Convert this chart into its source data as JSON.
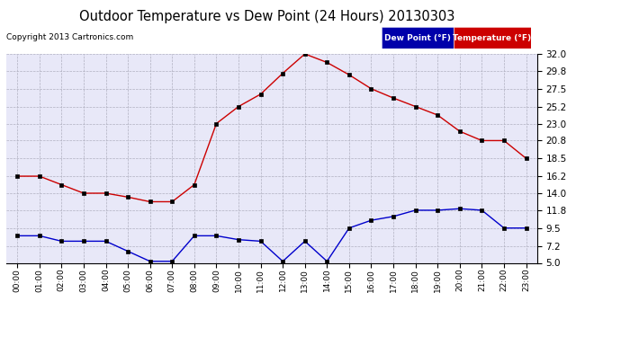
{
  "title": "Outdoor Temperature vs Dew Point (24 Hours) 20130303",
  "copyright_text": "Copyright 2013 Cartronics.com",
  "hours": [
    "00:00",
    "01:00",
    "02:00",
    "03:00",
    "04:00",
    "05:00",
    "06:00",
    "07:00",
    "08:00",
    "09:00",
    "10:00",
    "11:00",
    "12:00",
    "13:00",
    "14:00",
    "15:00",
    "16:00",
    "17:00",
    "18:00",
    "19:00",
    "20:00",
    "21:00",
    "22:00",
    "23:00"
  ],
  "temperature": [
    16.2,
    16.2,
    15.1,
    14.0,
    14.0,
    13.5,
    12.9,
    12.9,
    15.1,
    23.0,
    25.2,
    26.8,
    29.5,
    32.0,
    30.9,
    29.3,
    27.5,
    26.3,
    25.2,
    24.1,
    22.0,
    20.8,
    20.8,
    18.5
  ],
  "dew_point": [
    8.5,
    8.5,
    7.8,
    7.8,
    7.8,
    6.5,
    5.2,
    5.2,
    8.5,
    8.5,
    8.0,
    7.8,
    5.2,
    7.8,
    5.2,
    9.5,
    10.5,
    11.0,
    11.8,
    11.8,
    12.0,
    11.8,
    9.5,
    9.5
  ],
  "temp_color": "#cc0000",
  "dew_color": "#0000cc",
  "background_color": "#ffffff",
  "plot_bg_color": "#e8e8f8",
  "grid_color": "#b0b0c0",
  "ylim_min": 5.0,
  "ylim_max": 32.0,
  "yticks": [
    5.0,
    7.2,
    9.5,
    11.8,
    14.0,
    16.2,
    18.5,
    20.8,
    23.0,
    25.2,
    27.5,
    29.8,
    32.0
  ],
  "legend_dew_label": "Dew Point (°F)",
  "legend_temp_label": "Temperature (°F)",
  "legend_dew_bg": "#0000aa",
  "legend_temp_bg": "#cc0000",
  "legend_text_color": "#ffffff"
}
